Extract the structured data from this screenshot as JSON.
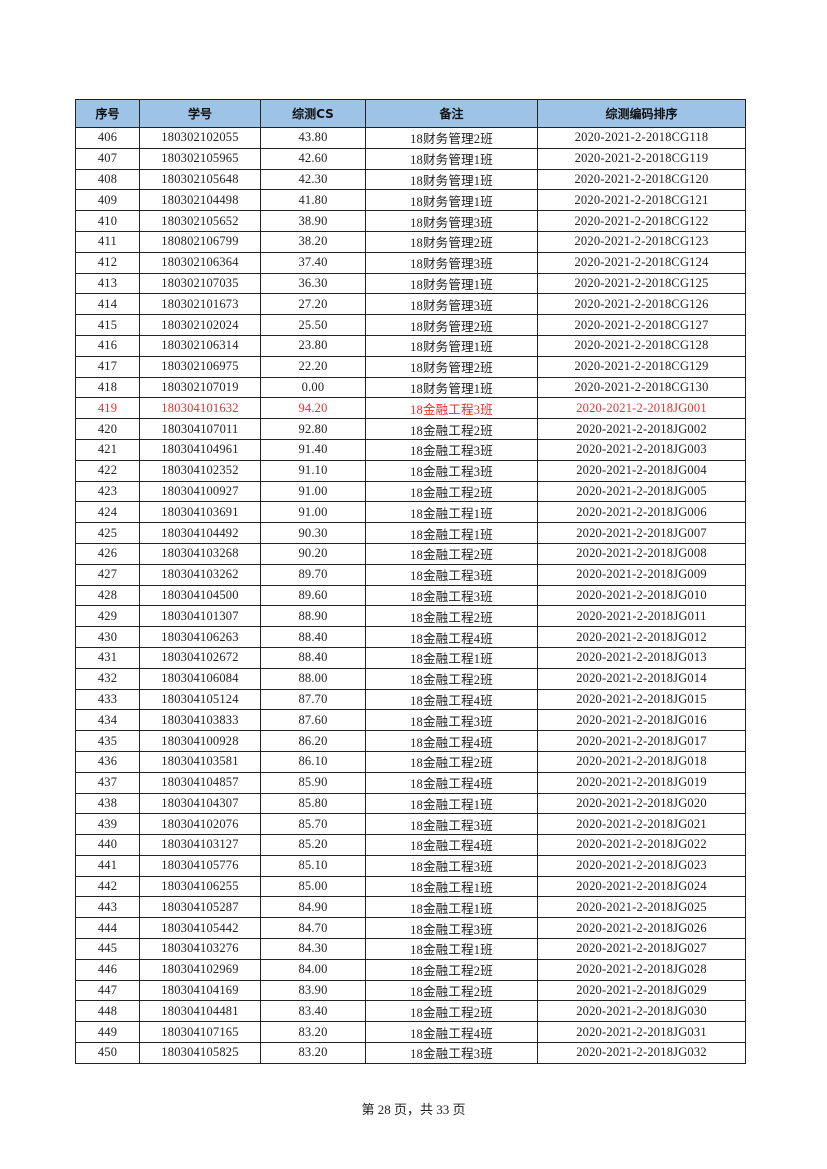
{
  "table": {
    "headers": [
      "序号",
      "学号",
      "综测CS",
      "备注",
      "综测编码排序"
    ],
    "highlight_color": "#e8312f",
    "header_bg": "#9dc3e6",
    "rows": [
      [
        "406",
        "180302102055",
        "43.80",
        "18财务管理2班",
        "2020-2021-2-2018CG118"
      ],
      [
        "407",
        "180302105965",
        "42.60",
        "18财务管理1班",
        "2020-2021-2-2018CG119"
      ],
      [
        "408",
        "180302105648",
        "42.30",
        "18财务管理1班",
        "2020-2021-2-2018CG120"
      ],
      [
        "409",
        "180302104498",
        "41.80",
        "18财务管理1班",
        "2020-2021-2-2018CG121"
      ],
      [
        "410",
        "180302105652",
        "38.90",
        "18财务管理3班",
        "2020-2021-2-2018CG122"
      ],
      [
        "411",
        "180802106799",
        "38.20",
        "18财务管理2班",
        "2020-2021-2-2018CG123"
      ],
      [
        "412",
        "180302106364",
        "37.40",
        "18财务管理3班",
        "2020-2021-2-2018CG124"
      ],
      [
        "413",
        "180302107035",
        "36.30",
        "18财务管理1班",
        "2020-2021-2-2018CG125"
      ],
      [
        "414",
        "180302101673",
        "27.20",
        "18财务管理3班",
        "2020-2021-2-2018CG126"
      ],
      [
        "415",
        "180302102024",
        "25.50",
        "18财务管理2班",
        "2020-2021-2-2018CG127"
      ],
      [
        "416",
        "180302106314",
        "23.80",
        "18财务管理1班",
        "2020-2021-2-2018CG128"
      ],
      [
        "417",
        "180302106975",
        "22.20",
        "18财务管理2班",
        "2020-2021-2-2018CG129"
      ],
      [
        "418",
        "180302107019",
        "0.00",
        "18财务管理1班",
        "2020-2021-2-2018CG130"
      ],
      [
        "419",
        "180304101632",
        "94.20",
        "18金融工程3班",
        "2020-2021-2-2018JG001"
      ],
      [
        "420",
        "180304107011",
        "92.80",
        "18金融工程2班",
        "2020-2021-2-2018JG002"
      ],
      [
        "421",
        "180304104961",
        "91.40",
        "18金融工程3班",
        "2020-2021-2-2018JG003"
      ],
      [
        "422",
        "180304102352",
        "91.10",
        "18金融工程3班",
        "2020-2021-2-2018JG004"
      ],
      [
        "423",
        "180304100927",
        "91.00",
        "18金融工程2班",
        "2020-2021-2-2018JG005"
      ],
      [
        "424",
        "180304103691",
        "91.00",
        "18金融工程1班",
        "2020-2021-2-2018JG006"
      ],
      [
        "425",
        "180304104492",
        "90.30",
        "18金融工程1班",
        "2020-2021-2-2018JG007"
      ],
      [
        "426",
        "180304103268",
        "90.20",
        "18金融工程2班",
        "2020-2021-2-2018JG008"
      ],
      [
        "427",
        "180304103262",
        "89.70",
        "18金融工程3班",
        "2020-2021-2-2018JG009"
      ],
      [
        "428",
        "180304104500",
        "89.60",
        "18金融工程3班",
        "2020-2021-2-2018JG010"
      ],
      [
        "429",
        "180304101307",
        "88.90",
        "18金融工程2班",
        "2020-2021-2-2018JG011"
      ],
      [
        "430",
        "180304106263",
        "88.40",
        "18金融工程4班",
        "2020-2021-2-2018JG012"
      ],
      [
        "431",
        "180304102672",
        "88.40",
        "18金融工程1班",
        "2020-2021-2-2018JG013"
      ],
      [
        "432",
        "180304106084",
        "88.00",
        "18金融工程2班",
        "2020-2021-2-2018JG014"
      ],
      [
        "433",
        "180304105124",
        "87.70",
        "18金融工程4班",
        "2020-2021-2-2018JG015"
      ],
      [
        "434",
        "180304103833",
        "87.60",
        "18金融工程3班",
        "2020-2021-2-2018JG016"
      ],
      [
        "435",
        "180304100928",
        "86.20",
        "18金融工程4班",
        "2020-2021-2-2018JG017"
      ],
      [
        "436",
        "180304103581",
        "86.10",
        "18金融工程2班",
        "2020-2021-2-2018JG018"
      ],
      [
        "437",
        "180304104857",
        "85.90",
        "18金融工程4班",
        "2020-2021-2-2018JG019"
      ],
      [
        "438",
        "180304104307",
        "85.80",
        "18金融工程1班",
        "2020-2021-2-2018JG020"
      ],
      [
        "439",
        "180304102076",
        "85.70",
        "18金融工程3班",
        "2020-2021-2-2018JG021"
      ],
      [
        "440",
        "180304103127",
        "85.20",
        "18金融工程4班",
        "2020-2021-2-2018JG022"
      ],
      [
        "441",
        "180304105776",
        "85.10",
        "18金融工程3班",
        "2020-2021-2-2018JG023"
      ],
      [
        "442",
        "180304106255",
        "85.00",
        "18金融工程1班",
        "2020-2021-2-2018JG024"
      ],
      [
        "443",
        "180304105287",
        "84.90",
        "18金融工程1班",
        "2020-2021-2-2018JG025"
      ],
      [
        "444",
        "180304105442",
        "84.70",
        "18金融工程3班",
        "2020-2021-2-2018JG026"
      ],
      [
        "445",
        "180304103276",
        "84.30",
        "18金融工程1班",
        "2020-2021-2-2018JG027"
      ],
      [
        "446",
        "180304102969",
        "84.00",
        "18金融工程2班",
        "2020-2021-2-2018JG028"
      ],
      [
        "447",
        "180304104169",
        "83.90",
        "18金融工程2班",
        "2020-2021-2-2018JG029"
      ],
      [
        "448",
        "180304104481",
        "83.40",
        "18金融工程2班",
        "2020-2021-2-2018JG030"
      ],
      [
        "449",
        "180304107165",
        "83.20",
        "18金融工程4班",
        "2020-2021-2-2018JG031"
      ],
      [
        "450",
        "180304105825",
        "83.20",
        "18金融工程3班",
        "2020-2021-2-2018JG032"
      ]
    ],
    "highlighted_rows": [
      "419"
    ]
  },
  "footer": {
    "page_label": "第 28 页，共 33 页"
  }
}
